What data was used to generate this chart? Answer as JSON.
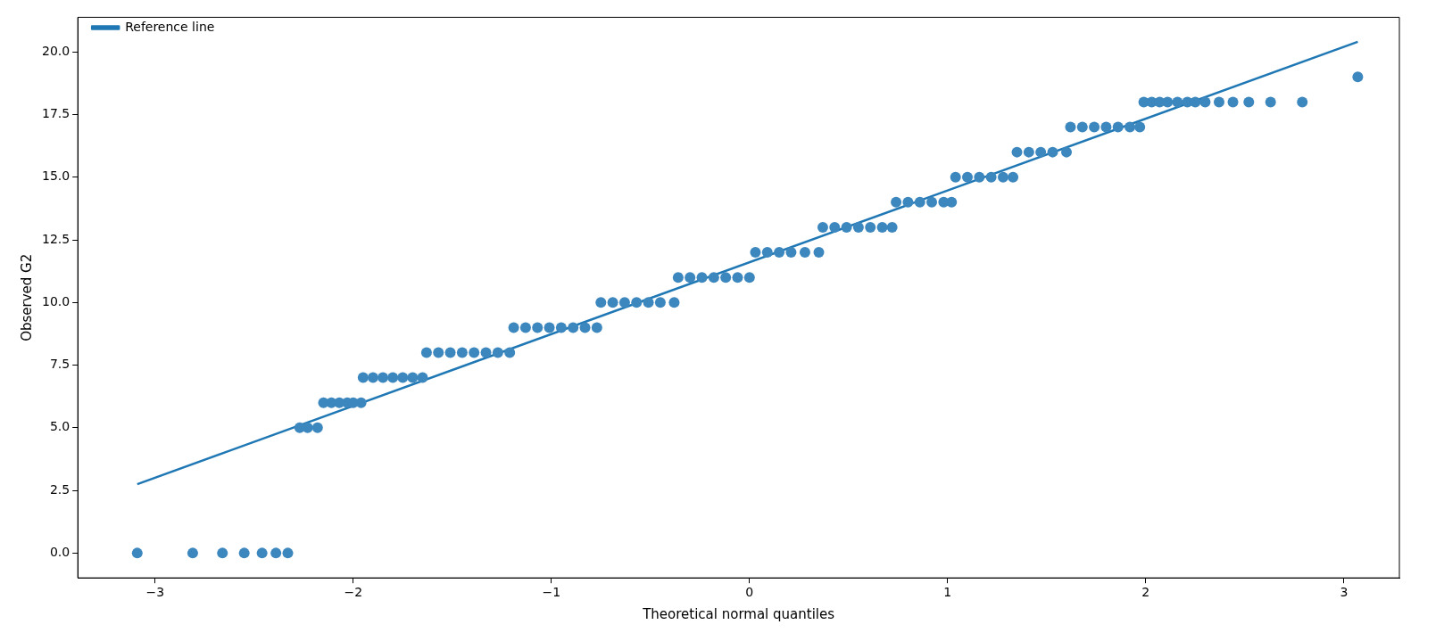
{
  "chart_data": {
    "type": "scatter",
    "xlabel": "Theoretical normal quantiles",
    "ylabel": "Observed G2",
    "xlim": [
      -3.39,
      3.28
    ],
    "ylim": [
      -0.99,
      21.38
    ],
    "xticks": [
      {
        "value": -3,
        "label": "−3"
      },
      {
        "value": -2,
        "label": "−2"
      },
      {
        "value": -1,
        "label": "−1"
      },
      0,
      1,
      2,
      3
    ],
    "yticks": [
      {
        "value": 0,
        "label": "0.0"
      },
      {
        "value": 2.5,
        "label": "2.5"
      },
      {
        "value": 5,
        "label": "5.0"
      },
      {
        "value": 7.5,
        "label": "7.5"
      },
      {
        "value": 10,
        "label": "10.0"
      },
      {
        "value": 12.5,
        "label": "12.5"
      },
      {
        "value": 15,
        "label": "15.0"
      },
      {
        "value": 17.5,
        "label": "17.5"
      },
      {
        "value": 20,
        "label": "20.0"
      }
    ],
    "grid": false,
    "legend": "top left",
    "series": [
      {
        "color": "#3d87bf",
        "marker": "circle",
        "x": [
          -3.09,
          -2.81,
          -2.66,
          -2.55,
          -2.46,
          -2.39,
          -2.33,
          -2.27,
          -2.23,
          -2.18,
          -2.15,
          -2.11,
          -2.07,
          -2.03,
          -2.0,
          -1.96,
          -1.95,
          -1.9,
          -1.85,
          -1.8,
          -1.75,
          -1.7,
          -1.65,
          -1.63,
          -1.57,
          -1.51,
          -1.45,
          -1.39,
          -1.33,
          -1.27,
          -1.21,
          -1.19,
          -1.13,
          -1.07,
          -1.01,
          -0.95,
          -0.89,
          -0.83,
          -0.77,
          -0.75,
          -0.69,
          -0.63,
          -0.57,
          -0.51,
          -0.45,
          -0.38,
          -0.36,
          -0.3,
          -0.24,
          -0.18,
          -0.12,
          -0.06,
          0.0,
          0.03,
          0.09,
          0.15,
          0.21,
          0.28,
          0.35,
          0.37,
          0.43,
          0.49,
          0.55,
          0.61,
          0.67,
          0.72,
          0.74,
          0.8,
          0.86,
          0.92,
          0.98,
          1.02,
          1.04,
          1.1,
          1.16,
          1.22,
          1.28,
          1.33,
          1.35,
          1.41,
          1.47,
          1.53,
          1.6,
          1.62,
          1.68,
          1.74,
          1.8,
          1.86,
          1.92,
          1.97,
          1.99,
          2.03,
          2.07,
          2.11,
          2.16,
          2.21,
          2.25,
          2.3,
          2.37,
          2.44,
          2.52,
          2.63,
          2.79,
          3.07
        ],
        "values": [
          0,
          0,
          0,
          0,
          0,
          0,
          0,
          5,
          5,
          5,
          6,
          6,
          6,
          6,
          6,
          6,
          7,
          7,
          7,
          7,
          7,
          7,
          7,
          8,
          8,
          8,
          8,
          8,
          8,
          8,
          8,
          9,
          9,
          9,
          9,
          9,
          9,
          9,
          9,
          10,
          10,
          10,
          10,
          10,
          10,
          10,
          11,
          11,
          11,
          11,
          11,
          11,
          11,
          12,
          12,
          12,
          12,
          12,
          12,
          13,
          13,
          13,
          13,
          13,
          13,
          13,
          14,
          14,
          14,
          14,
          14,
          14,
          15,
          15,
          15,
          15,
          15,
          15,
          16,
          16,
          16,
          16,
          16,
          17,
          17,
          17,
          17,
          17,
          17,
          17,
          18,
          18,
          18,
          18,
          18,
          18,
          18,
          18,
          18,
          18,
          18,
          18,
          18,
          19
        ]
      },
      {
        "type": "line",
        "name": "Reference line",
        "color": "#1f77b4",
        "marker": "none",
        "line_style": "solid",
        "x": [
          -3.09,
          3.07
        ],
        "values": [
          2.75,
          20.4
        ]
      }
    ]
  }
}
